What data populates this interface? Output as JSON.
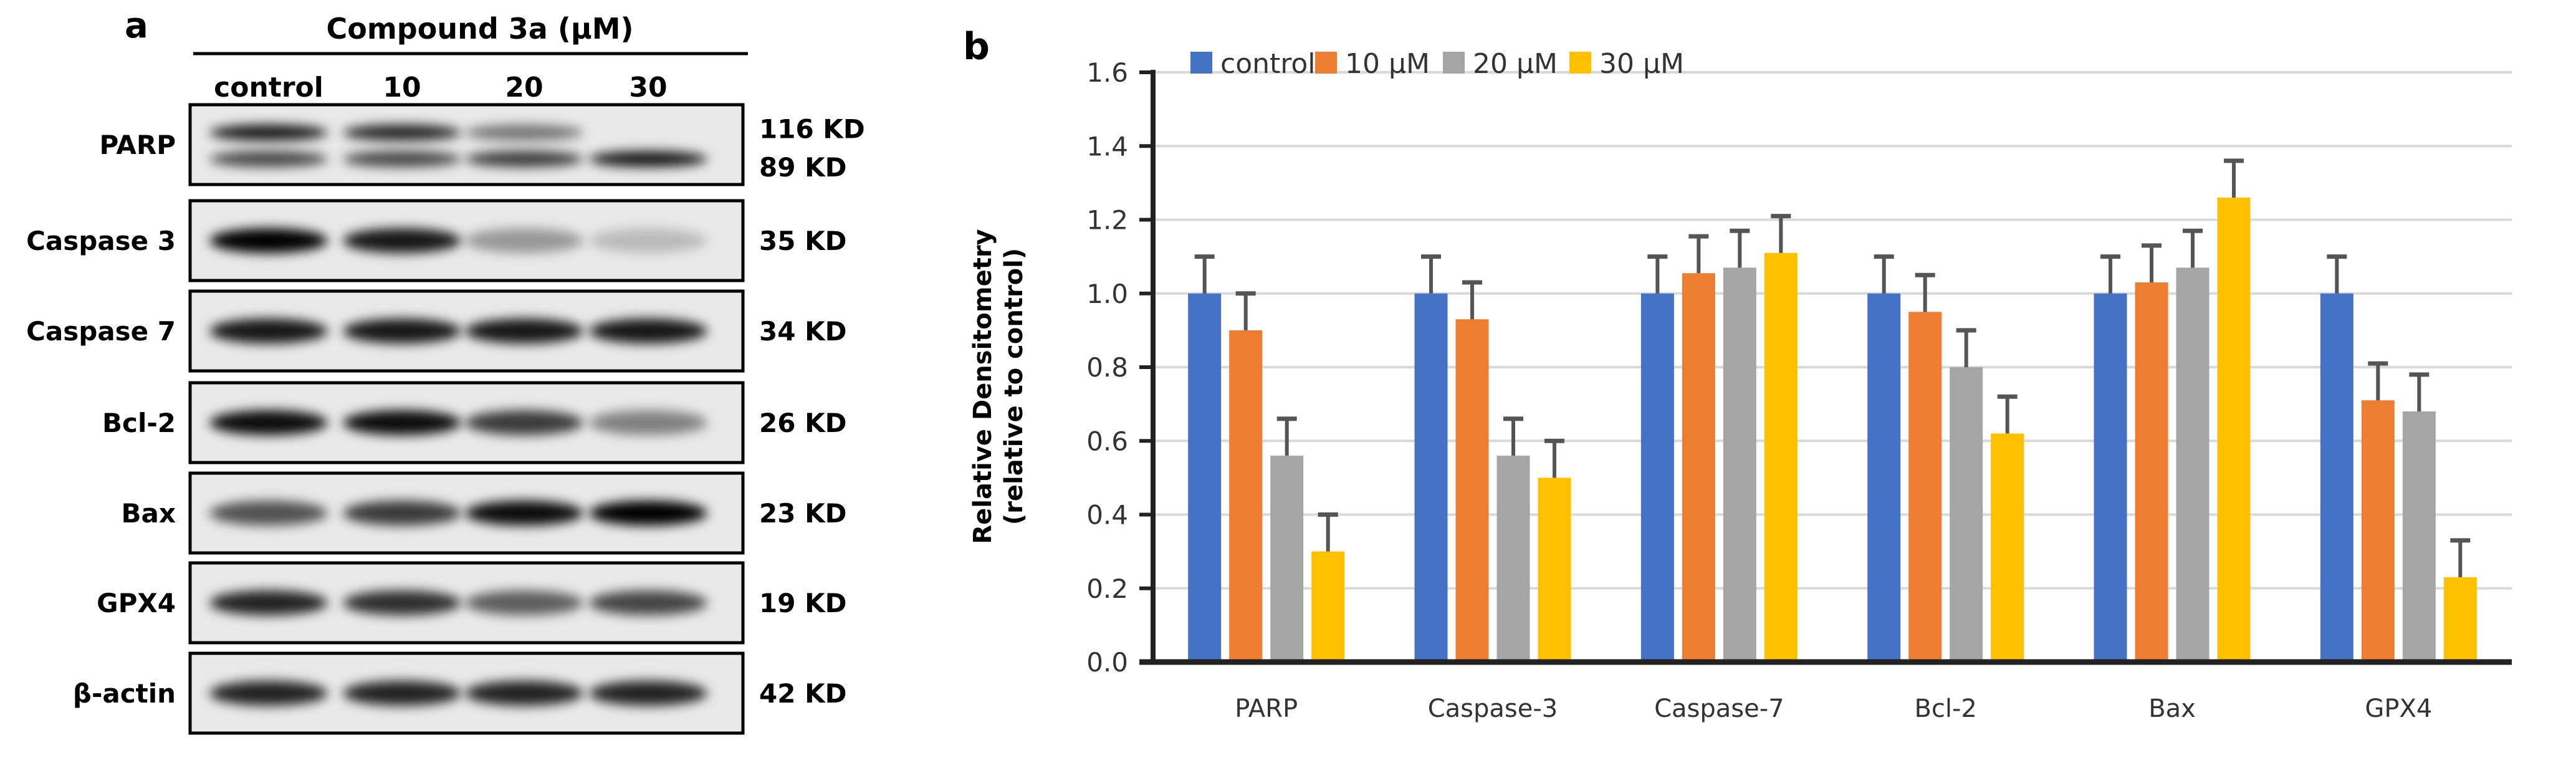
{
  "panel_a": {
    "label": "a",
    "header": "Compound 3a (µM)",
    "lanes": [
      "control",
      "10",
      "20",
      "30"
    ],
    "rows": [
      {
        "protein": "PARP",
        "kd": [
          "116 KD",
          "89 KD"
        ],
        "bands": [
          [
            0.9,
            0.85,
            0.5,
            0.05
          ],
          [
            0.7,
            0.7,
            0.75,
            0.9
          ]
        ]
      },
      {
        "protein": "Caspase 3",
        "kd": [
          "35 KD"
        ],
        "bands": [
          [
            1.0,
            0.9,
            0.35,
            0.2
          ]
        ]
      },
      {
        "protein": "Caspase 7",
        "kd": [
          "34 KD"
        ],
        "bands": [
          [
            0.9,
            0.9,
            0.9,
            0.9
          ]
        ]
      },
      {
        "protein": "Bcl-2",
        "kd": [
          "26 KD"
        ],
        "bands": [
          [
            0.95,
            0.95,
            0.75,
            0.45
          ]
        ]
      },
      {
        "protein": "Bax",
        "kd": [
          "23 KD"
        ],
        "bands": [
          [
            0.65,
            0.75,
            0.95,
            1.0
          ]
        ]
      },
      {
        "protein": "GPX4",
        "kd": [
          "19 KD"
        ],
        "bands": [
          [
            0.85,
            0.8,
            0.6,
            0.7
          ]
        ]
      },
      {
        "protein": "β-actin",
        "kd": [
          "42 KD"
        ],
        "bands": [
          [
            0.85,
            0.85,
            0.85,
            0.85
          ]
        ]
      }
    ]
  },
  "chart_data": {
    "type": "bar",
    "panel_label": "b",
    "title": "",
    "xlabel": "",
    "ylabel": "Relative Densitometry",
    "ylabel2": "(relative to control)",
    "ylim": [
      0,
      1.6
    ],
    "yticks": [
      "0.0",
      "0.2",
      "0.4",
      "0.6",
      "0.8",
      "1.0",
      "1.2",
      "1.4",
      "1.6"
    ],
    "grid": true,
    "legend_position": "top",
    "categories": [
      "PARP",
      "Caspase-3",
      "Caspase-7",
      "Bcl-2",
      "Bax",
      "GPX4"
    ],
    "series": [
      {
        "name": "control",
        "color": "#4472C4",
        "values": [
          1.0,
          1.0,
          1.0,
          1.0,
          1.0,
          1.0
        ],
        "errors": [
          0.1,
          0.1,
          0.1,
          0.1,
          0.1,
          0.1
        ]
      },
      {
        "name": "10 µM",
        "color": "#ED7D31",
        "values": [
          0.9,
          0.93,
          1.055,
          0.95,
          1.03,
          0.71
        ],
        "errors": [
          0.1,
          0.1,
          0.1,
          0.1,
          0.1,
          0.1
        ]
      },
      {
        "name": "20 µM",
        "color": "#A5A5A5",
        "values": [
          0.56,
          0.56,
          1.07,
          0.8,
          1.07,
          0.68
        ],
        "errors": [
          0.1,
          0.1,
          0.1,
          0.1,
          0.1,
          0.1
        ]
      },
      {
        "name": "30 µM",
        "color": "#FFC000",
        "values": [
          0.3,
          0.5,
          1.11,
          0.62,
          1.26,
          0.23
        ],
        "errors": [
          0.1,
          0.1,
          0.1,
          0.1,
          0.1,
          0.1
        ]
      }
    ]
  }
}
